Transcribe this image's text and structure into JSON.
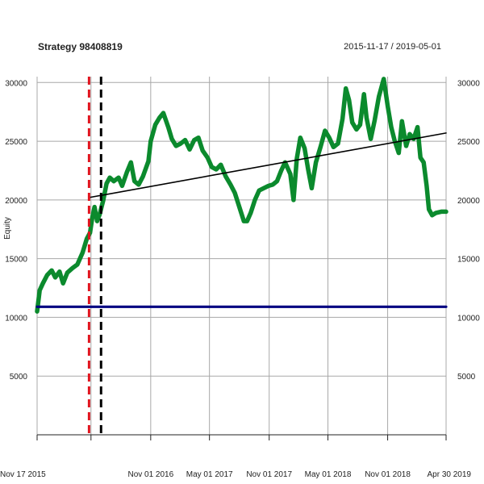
{
  "chart_data": {
    "type": "line",
    "title": "Strategy 98408819",
    "date_range_label": "2015-11-17 / 2019-05-01",
    "ylabel": "Equity",
    "xlabel": "",
    "x_start": "2015-11-17",
    "x_end": "2019-04-30",
    "ylim": [
      0,
      30500
    ],
    "y_ticks": [
      5000,
      10000,
      15000,
      20000,
      25000,
      30000
    ],
    "x_ticks": [
      {
        "date": "2015-11-17",
        "label": "Nov 17 2015"
      },
      {
        "date": "2016-05-01",
        "label": ""
      },
      {
        "date": "2016-11-01",
        "label": "Nov 01 2016"
      },
      {
        "date": "2017-05-01",
        "label": "May 01 2017"
      },
      {
        "date": "2017-11-01",
        "label": "Nov 01 2017"
      },
      {
        "date": "2018-05-01",
        "label": "May 01 2018"
      },
      {
        "date": "2018-11-01",
        "label": "Nov 01 2018"
      },
      {
        "date": "2019-04-30",
        "label": "Apr 30 2019"
      }
    ],
    "grid": true,
    "series": [
      {
        "kind": "equity",
        "color": "#0b8a2d",
        "points": [
          [
            "2015-11-17",
            10500
          ],
          [
            "2015-11-25",
            12300
          ],
          [
            "2015-12-05",
            12900
          ],
          [
            "2015-12-18",
            13600
          ],
          [
            "2016-01-01",
            14000
          ],
          [
            "2016-01-12",
            13400
          ],
          [
            "2016-01-25",
            13900
          ],
          [
            "2016-02-05",
            12900
          ],
          [
            "2016-02-18",
            13800
          ],
          [
            "2016-03-05",
            14200
          ],
          [
            "2016-03-20",
            14500
          ],
          [
            "2016-04-05",
            15500
          ],
          [
            "2016-04-18",
            16700
          ],
          [
            "2016-04-28",
            17200
          ],
          [
            "2016-05-05",
            18500
          ],
          [
            "2016-05-12",
            19400
          ],
          [
            "2016-05-20",
            18200
          ],
          [
            "2016-05-28",
            18800
          ],
          [
            "2016-06-08",
            20000
          ],
          [
            "2016-06-18",
            21400
          ],
          [
            "2016-06-28",
            21900
          ],
          [
            "2016-07-10",
            21600
          ],
          [
            "2016-07-25",
            21900
          ],
          [
            "2016-08-05",
            21200
          ],
          [
            "2016-08-20",
            22400
          ],
          [
            "2016-09-01",
            23200
          ],
          [
            "2016-09-12",
            21600
          ],
          [
            "2016-09-25",
            21300
          ],
          [
            "2016-10-08",
            22000
          ],
          [
            "2016-10-25",
            23300
          ],
          [
            "2016-11-01",
            25000
          ],
          [
            "2016-11-15",
            26400
          ],
          [
            "2016-11-28",
            27000
          ],
          [
            "2016-12-10",
            27400
          ],
          [
            "2016-12-25",
            26200
          ],
          [
            "2017-01-05",
            25200
          ],
          [
            "2017-01-18",
            24600
          ],
          [
            "2017-02-01",
            24800
          ],
          [
            "2017-02-15",
            25100
          ],
          [
            "2017-03-01",
            24300
          ],
          [
            "2017-03-15",
            25100
          ],
          [
            "2017-03-28",
            25300
          ],
          [
            "2017-04-10",
            24200
          ],
          [
            "2017-04-25",
            23600
          ],
          [
            "2017-05-08",
            22800
          ],
          [
            "2017-05-22",
            22600
          ],
          [
            "2017-06-05",
            23000
          ],
          [
            "2017-06-20",
            22000
          ],
          [
            "2017-07-05",
            21300
          ],
          [
            "2017-07-18",
            20600
          ],
          [
            "2017-08-01",
            19400
          ],
          [
            "2017-08-15",
            18200
          ],
          [
            "2017-08-25",
            18200
          ],
          [
            "2017-09-05",
            18900
          ],
          [
            "2017-09-18",
            20000
          ],
          [
            "2017-10-01",
            20800
          ],
          [
            "2017-10-15",
            21000
          ],
          [
            "2017-10-30",
            21200
          ],
          [
            "2017-11-12",
            21300
          ],
          [
            "2017-11-25",
            21600
          ],
          [
            "2017-12-08",
            22500
          ],
          [
            "2017-12-20",
            23200
          ],
          [
            "2018-01-05",
            22200
          ],
          [
            "2018-01-15",
            20000
          ],
          [
            "2018-01-25",
            23500
          ],
          [
            "2018-02-05",
            25300
          ],
          [
            "2018-02-18",
            24400
          ],
          [
            "2018-03-01",
            22600
          ],
          [
            "2018-03-12",
            21000
          ],
          [
            "2018-03-25",
            23200
          ],
          [
            "2018-04-08",
            24500
          ],
          [
            "2018-04-22",
            25900
          ],
          [
            "2018-05-05",
            25300
          ],
          [
            "2018-05-18",
            24500
          ],
          [
            "2018-06-01",
            24800
          ],
          [
            "2018-06-15",
            26900
          ],
          [
            "2018-06-25",
            29500
          ],
          [
            "2018-07-05",
            28500
          ],
          [
            "2018-07-15",
            26600
          ],
          [
            "2018-07-28",
            26000
          ],
          [
            "2018-08-08",
            26400
          ],
          [
            "2018-08-20",
            29000
          ],
          [
            "2018-08-28",
            27000
          ],
          [
            "2018-09-10",
            25200
          ],
          [
            "2018-09-22",
            26800
          ],
          [
            "2018-10-05",
            28800
          ],
          [
            "2018-10-20",
            30300
          ],
          [
            "2018-11-01",
            28000
          ],
          [
            "2018-11-12",
            26200
          ],
          [
            "2018-11-22",
            25100
          ],
          [
            "2018-12-05",
            24000
          ],
          [
            "2018-12-15",
            26700
          ],
          [
            "2018-12-28",
            24600
          ],
          [
            "2019-01-08",
            25600
          ],
          [
            "2019-01-20",
            25200
          ],
          [
            "2019-02-01",
            26200
          ],
          [
            "2019-02-10",
            23600
          ],
          [
            "2019-02-20",
            23200
          ],
          [
            "2019-03-01",
            21200
          ],
          [
            "2019-03-08",
            19200
          ],
          [
            "2019-03-18",
            18700
          ],
          [
            "2019-03-30",
            18900
          ],
          [
            "2019-04-15",
            19000
          ],
          [
            "2019-04-30",
            19000
          ]
        ]
      },
      {
        "kind": "trend",
        "color": "#000000",
        "points": [
          [
            "2016-04-25",
            20200
          ],
          [
            "2019-04-30",
            25700
          ]
        ]
      },
      {
        "kind": "baseline",
        "color": "#000080",
        "points": [
          [
            "2015-11-17",
            10900
          ],
          [
            "2019-04-30",
            10900
          ]
        ]
      }
    ],
    "vlines": [
      {
        "date": "2016-04-25",
        "color": "#e0141e"
      },
      {
        "date": "2016-06-01",
        "color": "#000000"
      }
    ]
  }
}
